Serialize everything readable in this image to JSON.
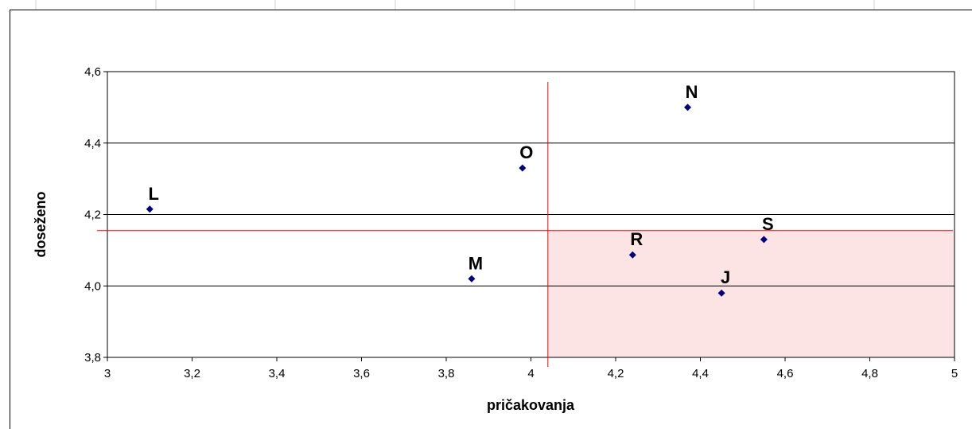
{
  "chart_data": {
    "type": "scatter",
    "title": "",
    "xlabel": "pričakovanja",
    "ylabel": "doseženo",
    "xlim": [
      3,
      5
    ],
    "ylim": [
      3.8,
      4.6
    ],
    "x_ticks": [
      "3",
      "3,2",
      "3,4",
      "3,6",
      "3,8",
      "4",
      "4,2",
      "4,4",
      "4,6",
      "4,8",
      "5"
    ],
    "y_ticks": [
      "3,8",
      "4,0",
      "4,2",
      "4,4",
      "4,6"
    ],
    "grid": "horizontal",
    "points": [
      {
        "label": "L",
        "x": 3.1,
        "y": 4.215
      },
      {
        "label": "O",
        "x": 3.98,
        "y": 4.33
      },
      {
        "label": "M",
        "x": 3.86,
        "y": 4.02
      },
      {
        "label": "N",
        "x": 4.37,
        "y": 4.5
      },
      {
        "label": "R",
        "x": 4.24,
        "y": 4.087
      },
      {
        "label": "J",
        "x": 4.45,
        "y": 3.98
      },
      {
        "label": "S",
        "x": 4.55,
        "y": 4.13
      }
    ],
    "reference_lines": {
      "x": 4.04,
      "y": 4.155
    },
    "highlight_quadrant": "bottom-right",
    "colors": {
      "points": "#000080",
      "reference": "#ff0000",
      "highlight": "#fde4e4",
      "grid": "#000000"
    }
  }
}
